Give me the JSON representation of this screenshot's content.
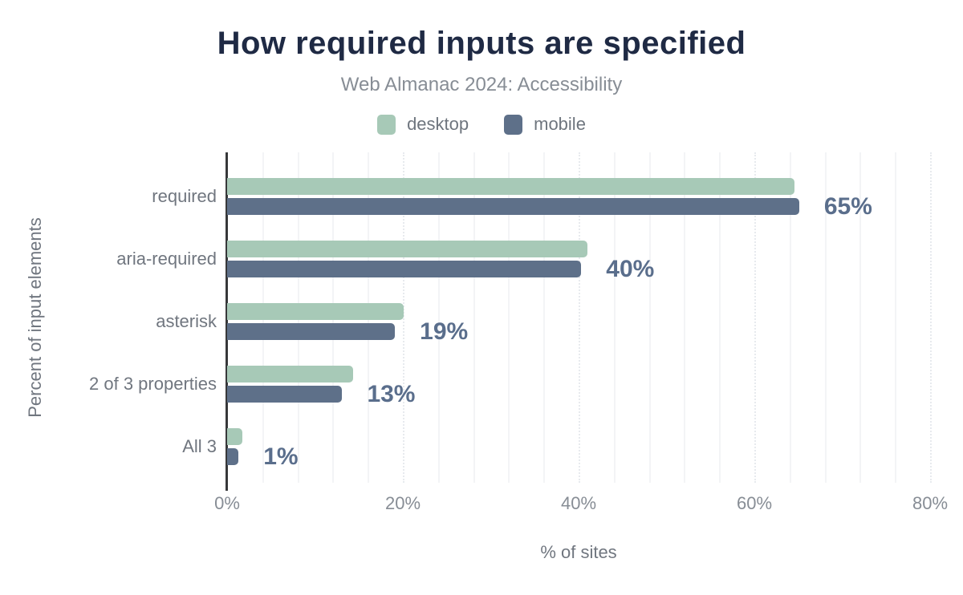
{
  "title": "How required inputs are specified",
  "subtitle": "Web Almanac 2024: Accessibility",
  "legend": {
    "items": [
      {
        "label": "desktop",
        "color": "#a7c9b7"
      },
      {
        "label": "mobile",
        "color": "#5e7089"
      }
    ]
  },
  "colors": {
    "title": "#1f2a44",
    "subtitle": "#878d95",
    "category_label": "#70767f",
    "value_label": "#5a6e8c",
    "axis_line": "#37383a",
    "desktop_bar": "#a7c9b7",
    "mobile_bar": "#5e7089"
  },
  "chart_data": {
    "type": "bar",
    "orientation": "horizontal",
    "title": "How required inputs are specified",
    "subtitle": "Web Almanac 2024: Accessibility",
    "categories": [
      "required",
      "aria-required",
      "asterisk",
      "2 of 3 properties",
      "All 3"
    ],
    "series": [
      {
        "name": "desktop",
        "color": "#a7c9b7",
        "values": [
          64.6,
          41.0,
          20.1,
          14.3,
          1.7
        ]
      },
      {
        "name": "mobile",
        "color": "#5e7089",
        "values": [
          65.1,
          40.3,
          19.1,
          13.1,
          1.3
        ]
      }
    ],
    "value_labels": [
      "65%",
      "40%",
      "19%",
      "13%",
      "1%"
    ],
    "xlabel": "% of sites",
    "ylabel": "Percent of input elements",
    "x_ticks": [
      "0%",
      "20%",
      "40%",
      "60%",
      "80%"
    ],
    "x_tick_values": [
      0,
      20,
      40,
      60,
      80
    ],
    "xlim": [
      0,
      80
    ],
    "grid": {
      "minor_step": 4,
      "major_step": 20,
      "major_style": "dotted",
      "minor_style": "solid"
    },
    "legend_position": "top"
  }
}
